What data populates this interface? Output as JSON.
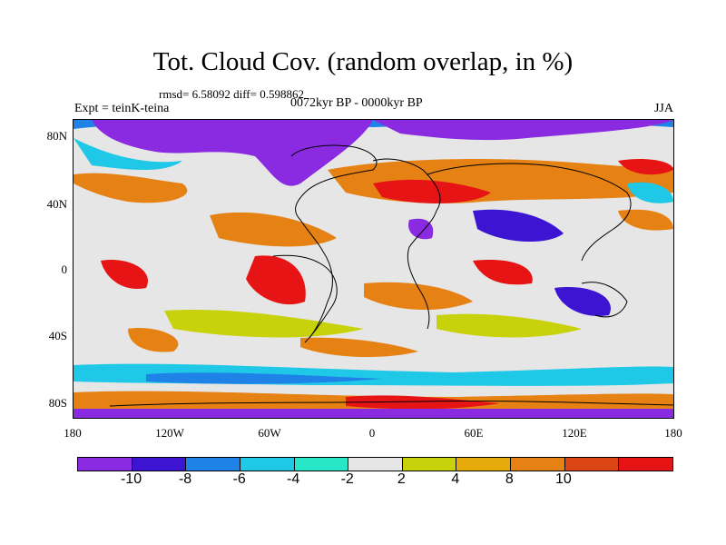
{
  "title": "Tot. Cloud Cov. (random overlap, in %)",
  "stats": "rmsd= 6.58092 diff= 0.598862",
  "subtitle": "0072kyr BP - 0000kyr BP",
  "expt": "Expt = teinK-teina",
  "season": "JJA",
  "lat_labels": [
    "80N",
    "40N",
    "0",
    "40S",
    "80S"
  ],
  "lon_labels": [
    "180",
    "120W",
    "60W",
    "0",
    "60E",
    "120E",
    "180"
  ],
  "colorbar": {
    "colors": [
      "#8a2be2",
      "#3c14d2",
      "#1e82e6",
      "#1ec8e6",
      "#28e6c8",
      "#e6e6e6",
      "#c8d20a",
      "#e6aa0a",
      "#e68214",
      "#dc4614",
      "#e61414"
    ],
    "labels": [
      "-10",
      "-8",
      "-6",
      "-4",
      "-2",
      "2",
      "4",
      "8",
      "10"
    ]
  },
  "field_colors": {
    "neutral": "#e6e6e6",
    "purple": "#8a2be2",
    "deep_blue": "#3c14d2",
    "blue": "#1e82e6",
    "cyan": "#1ec8e6",
    "teal": "#28e6c8",
    "yellow": "#c8d20a",
    "light_orange": "#e6aa0a",
    "orange": "#e68214",
    "red_orange": "#dc4614",
    "red": "#e61414"
  }
}
